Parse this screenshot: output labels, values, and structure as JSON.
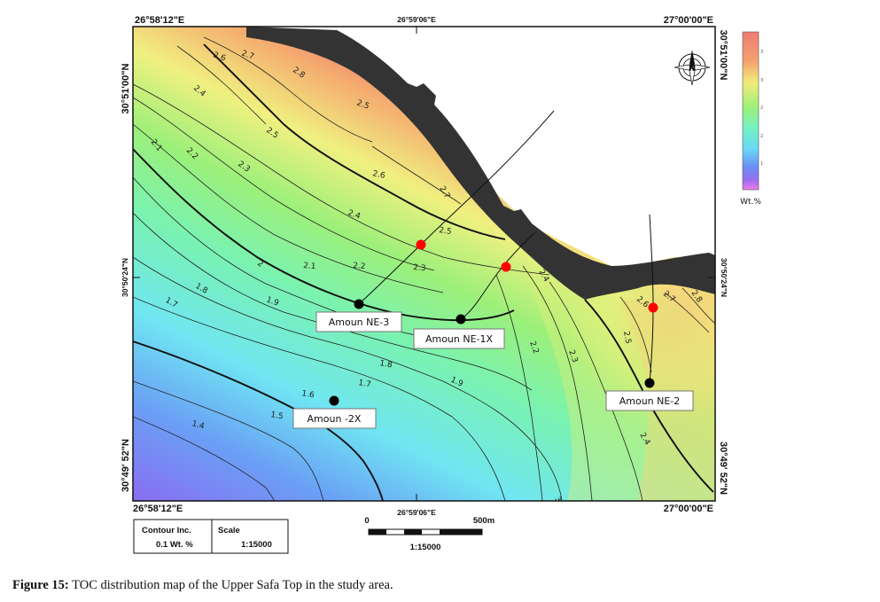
{
  "map": {
    "coords": {
      "top_left": "26°58'12\"E",
      "top_mid": "26°59'06\"E",
      "top_right": "27°00'00\"E",
      "bottom_left": "26°58'12\"E",
      "bottom_mid": "26°59'06\"E",
      "bottom_right": "27°00'00\"E",
      "left_top": "30°51'00\"N",
      "left_mid": "30°50'24\"N",
      "left_bottom": "30°49' 52\"N",
      "right_top": "30°51'00\"N",
      "right_mid": "30°50'24\"N",
      "right_bottom": "30°49' 52\"N"
    },
    "contour_labels": [
      "2.6",
      "2.7",
      "2.8",
      "2.4",
      "2.5",
      "2.3",
      "2.2",
      "2.1",
      "2.6",
      "2.4",
      "2.5",
      "2.7",
      "2.2",
      "2.1",
      "2",
      "2.3",
      "2.4",
      "1.8",
      "1.9",
      "1.7",
      "1.8",
      "1.7",
      "1.9",
      "1.6",
      "1.5",
      "1.4",
      "2.2",
      "2.3",
      "2.5",
      "2.4",
      "2.6",
      "2.7",
      "2.8",
      "3",
      "2.5"
    ],
    "wells": [
      {
        "name": "Amoun NE-3"
      },
      {
        "name": "Amoun NE-1X"
      },
      {
        "name": "Amoun NE-2"
      },
      {
        "name": "Amoun -2X"
      }
    ],
    "colors": {
      "fault_zone": "#333333",
      "low": "#8060f0",
      "mid": "#70f0f0",
      "high": "#f09070",
      "well_bottom": "#000000",
      "well_top": "#ff0000"
    },
    "north_arrow_icon": "compass-rose-icon"
  },
  "legend": {
    "unit": "Wt.%",
    "tick_labels": [
      "3",
      "3",
      "2",
      "2",
      "1"
    ],
    "range": [
      1.3,
      2.9
    ]
  },
  "info_box": {
    "contour_inc_label": "Contour Inc.",
    "contour_inc_value": "0.1 Wt. %",
    "scale_label": "Scale",
    "scale_value": "1:15000"
  },
  "scalebar": {
    "start": "0",
    "end": "500m",
    "ratio": "1:15000"
  },
  "caption": {
    "prefix": "Figure 15:",
    "text": " TOC distribution map of the Upper Safa Top in the study area."
  }
}
